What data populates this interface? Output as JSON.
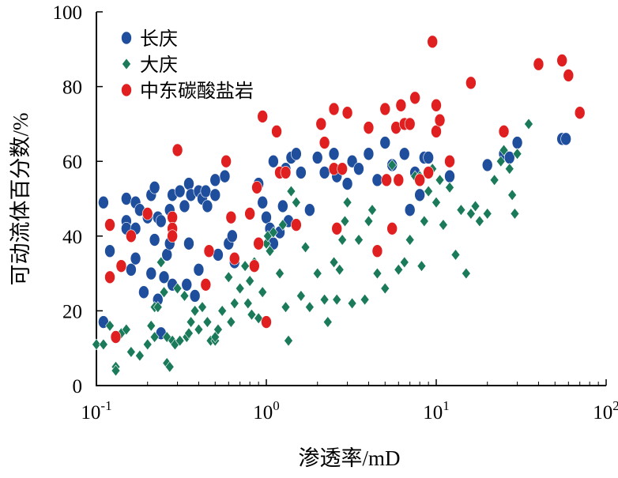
{
  "chart_data": {
    "type": "scatter",
    "title": "",
    "xlabel": "渗透率/mD",
    "ylabel": "可动流体百分数/%",
    "xscale": "log",
    "xlim": [
      0.1,
      100
    ],
    "ylim": [
      0,
      100
    ],
    "x_ticks": [
      {
        "value": 0.1,
        "base": "10",
        "exp": "-1"
      },
      {
        "value": 1,
        "base": "10",
        "exp": "0"
      },
      {
        "value": 10,
        "base": "10",
        "exp": "1"
      },
      {
        "value": 100,
        "base": "10",
        "exp": "2"
      }
    ],
    "y_ticks": [
      "0",
      "20",
      "40",
      "60",
      "80",
      "100"
    ],
    "legend_position": "top-left",
    "series": [
      {
        "name": "长庆",
        "marker": "circle",
        "color": "#1f4e9c",
        "points": [
          [
            0.11,
            49
          ],
          [
            0.11,
            17
          ],
          [
            0.12,
            36
          ],
          [
            0.15,
            50
          ],
          [
            0.15,
            44
          ],
          [
            0.15,
            42
          ],
          [
            0.16,
            31
          ],
          [
            0.17,
            49
          ],
          [
            0.17,
            42
          ],
          [
            0.17,
            34
          ],
          [
            0.18,
            47
          ],
          [
            0.19,
            25
          ],
          [
            0.2,
            45
          ],
          [
            0.21,
            51
          ],
          [
            0.21,
            30
          ],
          [
            0.22,
            53
          ],
          [
            0.22,
            39
          ],
          [
            0.23,
            45
          ],
          [
            0.24,
            44
          ],
          [
            0.23,
            23
          ],
          [
            0.24,
            14
          ],
          [
            0.25,
            29
          ],
          [
            0.26,
            35
          ],
          [
            0.27,
            38
          ],
          [
            0.27,
            47
          ],
          [
            0.28,
            51
          ],
          [
            0.28,
            42
          ],
          [
            0.28,
            27
          ],
          [
            0.31,
            52
          ],
          [
            0.33,
            48
          ],
          [
            0.35,
            54
          ],
          [
            0.35,
            38
          ],
          [
            0.34,
            27
          ],
          [
            0.36,
            51
          ],
          [
            0.38,
            24
          ],
          [
            0.4,
            31
          ],
          [
            0.4,
            52
          ],
          [
            0.42,
            50
          ],
          [
            0.44,
            52
          ],
          [
            0.45,
            48
          ],
          [
            0.46,
            36
          ],
          [
            0.5,
            55
          ],
          [
            0.5,
            51
          ],
          [
            0.52,
            35
          ],
          [
            0.57,
            56
          ],
          [
            0.6,
            38
          ],
          [
            0.63,
            40
          ],
          [
            0.65,
            33
          ],
          [
            0.9,
            54
          ],
          [
            0.95,
            49
          ],
          [
            1.0,
            45
          ],
          [
            1.05,
            42
          ],
          [
            1.1,
            38
          ],
          [
            1.1,
            60
          ],
          [
            1.2,
            41
          ],
          [
            1.25,
            48
          ],
          [
            1.3,
            58
          ],
          [
            1.35,
            44
          ],
          [
            1.4,
            61
          ],
          [
            1.5,
            62
          ],
          [
            1.6,
            57
          ],
          [
            1.8,
            47
          ],
          [
            2.0,
            61
          ],
          [
            2.2,
            57
          ],
          [
            2.5,
            62
          ],
          [
            2.6,
            56
          ],
          [
            3.0,
            54
          ],
          [
            3.2,
            60
          ],
          [
            3.5,
            58
          ],
          [
            4.0,
            62
          ],
          [
            4.5,
            55
          ],
          [
            5.0,
            65
          ],
          [
            5.5,
            59
          ],
          [
            6.5,
            62
          ],
          [
            7.0,
            47
          ],
          [
            7.5,
            57
          ],
          [
            8.0,
            51
          ],
          [
            8.5,
            61
          ],
          [
            9.0,
            61
          ],
          [
            12.0,
            56
          ],
          [
            20.0,
            59
          ],
          [
            25.0,
            62
          ],
          [
            27.0,
            61
          ],
          [
            30.0,
            65
          ],
          [
            55.0,
            66
          ],
          [
            58.0,
            66
          ]
        ]
      },
      {
        "name": "大庆",
        "marker": "diamond",
        "color": "#1a7a5a",
        "points": [
          [
            0.1,
            11
          ],
          [
            0.11,
            11
          ],
          [
            0.12,
            16
          ],
          [
            0.13,
            5
          ],
          [
            0.13,
            4
          ],
          [
            0.14,
            14
          ],
          [
            0.15,
            15
          ],
          [
            0.16,
            9
          ],
          [
            0.18,
            8
          ],
          [
            0.2,
            11
          ],
          [
            0.21,
            16
          ],
          [
            0.22,
            13
          ],
          [
            0.22,
            21
          ],
          [
            0.23,
            21
          ],
          [
            0.24,
            33
          ],
          [
            0.25,
            25
          ],
          [
            0.26,
            13
          ],
          [
            0.26,
            6
          ],
          [
            0.27,
            5
          ],
          [
            0.28,
            12
          ],
          [
            0.29,
            11
          ],
          [
            0.3,
            26
          ],
          [
            0.31,
            12
          ],
          [
            0.33,
            24
          ],
          [
            0.34,
            13
          ],
          [
            0.35,
            14
          ],
          [
            0.36,
            17
          ],
          [
            0.38,
            20
          ],
          [
            0.4,
            15
          ],
          [
            0.42,
            21
          ],
          [
            0.45,
            17
          ],
          [
            0.47,
            12
          ],
          [
            0.5,
            12
          ],
          [
            0.5,
            13
          ],
          [
            0.52,
            15
          ],
          [
            0.55,
            20
          ],
          [
            0.6,
            29
          ],
          [
            0.62,
            17
          ],
          [
            0.65,
            22
          ],
          [
            0.7,
            26
          ],
          [
            0.75,
            32
          ],
          [
            0.78,
            22
          ],
          [
            0.8,
            28
          ],
          [
            0.82,
            19
          ],
          [
            0.85,
            33
          ],
          [
            0.9,
            18
          ],
          [
            0.95,
            25
          ],
          [
            1.0,
            38
          ],
          [
            1.02,
            40
          ],
          [
            1.05,
            36
          ],
          [
            1.1,
            41
          ],
          [
            1.2,
            30
          ],
          [
            1.25,
            43
          ],
          [
            1.3,
            21
          ],
          [
            1.35,
            12
          ],
          [
            1.4,
            52
          ],
          [
            1.5,
            49
          ],
          [
            1.6,
            24
          ],
          [
            1.7,
            37
          ],
          [
            1.8,
            21
          ],
          [
            2.0,
            30
          ],
          [
            2.2,
            23
          ],
          [
            2.3,
            17
          ],
          [
            2.5,
            33
          ],
          [
            2.6,
            23
          ],
          [
            2.7,
            31
          ],
          [
            2.8,
            39
          ],
          [
            2.9,
            44
          ],
          [
            3.0,
            49
          ],
          [
            3.2,
            22
          ],
          [
            3.5,
            39
          ],
          [
            3.8,
            23
          ],
          [
            4.0,
            44
          ],
          [
            4.2,
            47
          ],
          [
            4.5,
            30
          ],
          [
            5.0,
            26
          ],
          [
            5.5,
            59
          ],
          [
            6.0,
            31
          ],
          [
            6.5,
            33
          ],
          [
            7.0,
            39
          ],
          [
            7.5,
            56
          ],
          [
            8.0,
            56
          ],
          [
            8.2,
            32
          ],
          [
            8.5,
            44
          ],
          [
            9.0,
            52
          ],
          [
            9.5,
            58
          ],
          [
            10.0,
            49
          ],
          [
            10.5,
            55
          ],
          [
            11.0,
            43
          ],
          [
            12.0,
            53
          ],
          [
            13.0,
            35
          ],
          [
            14.0,
            47
          ],
          [
            15.0,
            30
          ],
          [
            16.0,
            46
          ],
          [
            17.0,
            48
          ],
          [
            18.0,
            44
          ],
          [
            20.0,
            46
          ],
          [
            22.0,
            55
          ],
          [
            24.0,
            60
          ],
          [
            25.0,
            63
          ],
          [
            27.0,
            58
          ],
          [
            28.0,
            51
          ],
          [
            29.0,
            46
          ],
          [
            30.0,
            62
          ],
          [
            35.0,
            70
          ]
        ]
      },
      {
        "name": "中东碳酸盐岩",
        "marker": "circle",
        "color": "#e02020",
        "points": [
          [
            0.12,
            43
          ],
          [
            0.12,
            29
          ],
          [
            0.13,
            13
          ],
          [
            0.14,
            32
          ],
          [
            0.16,
            40
          ],
          [
            0.2,
            46
          ],
          [
            0.28,
            45
          ],
          [
            0.28,
            42
          ],
          [
            0.28,
            40
          ],
          [
            0.3,
            63
          ],
          [
            0.44,
            27
          ],
          [
            0.46,
            36
          ],
          [
            0.58,
            60
          ],
          [
            0.62,
            45
          ],
          [
            0.65,
            34
          ],
          [
            0.8,
            46
          ],
          [
            0.85,
            32
          ],
          [
            0.88,
            53
          ],
          [
            0.9,
            38
          ],
          [
            0.95,
            72
          ],
          [
            1.0,
            17
          ],
          [
            1.15,
            68
          ],
          [
            1.2,
            57
          ],
          [
            1.3,
            57
          ],
          [
            1.5,
            43
          ],
          [
            2.1,
            70
          ],
          [
            2.2,
            65
          ],
          [
            2.5,
            58
          ],
          [
            2.5,
            74
          ],
          [
            2.6,
            42
          ],
          [
            2.8,
            58
          ],
          [
            3.0,
            73
          ],
          [
            4.0,
            69
          ],
          [
            4.5,
            36
          ],
          [
            5.0,
            74
          ],
          [
            5.1,
            55
          ],
          [
            5.5,
            42
          ],
          [
            5.8,
            69
          ],
          [
            6.0,
            55
          ],
          [
            6.2,
            75
          ],
          [
            6.5,
            70
          ],
          [
            7.0,
            70
          ],
          [
            7.5,
            77
          ],
          [
            8.0,
            55
          ],
          [
            9.0,
            57
          ],
          [
            9.5,
            92
          ],
          [
            10.0,
            68
          ],
          [
            10.0,
            75
          ],
          [
            10.5,
            71
          ],
          [
            12.0,
            60
          ],
          [
            16.0,
            81
          ],
          [
            25.0,
            68
          ],
          [
            40.0,
            86
          ],
          [
            55.0,
            87
          ],
          [
            60.0,
            83
          ],
          [
            70.0,
            73
          ]
        ]
      }
    ]
  }
}
